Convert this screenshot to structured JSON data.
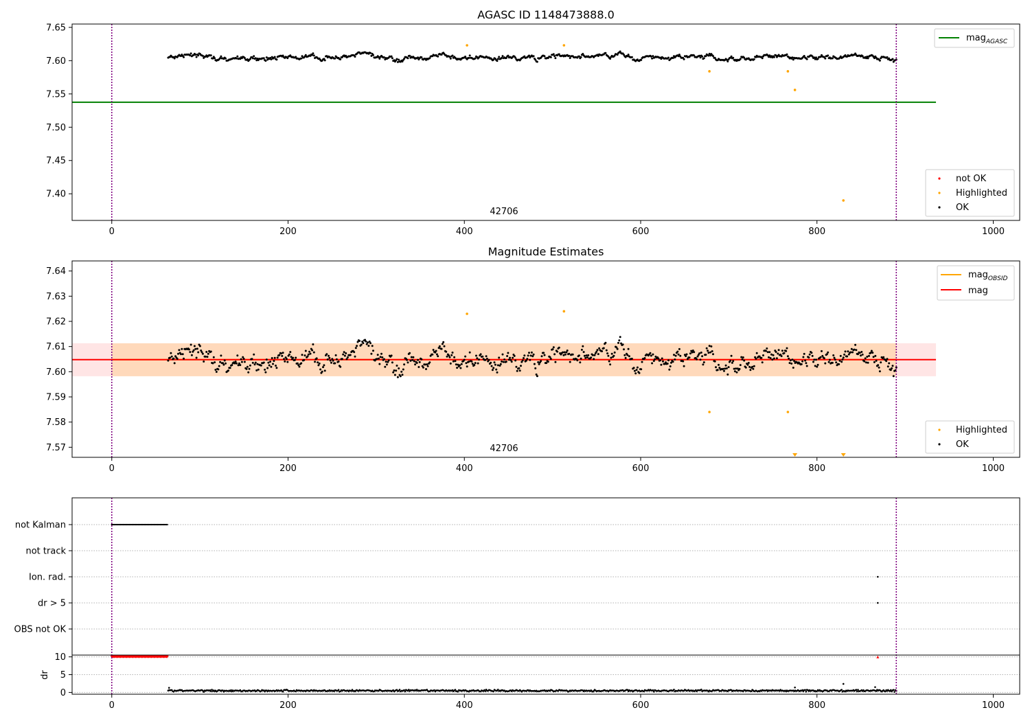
{
  "chart_data": [
    {
      "type": "scatter",
      "title": "AGASC ID 1148473888.0",
      "xlabel": "",
      "ylabel": "",
      "xlim": [
        -45,
        1030
      ],
      "ylim": [
        7.36,
        7.655
      ],
      "x_ticks": [
        "0",
        "200",
        "400",
        "600",
        "800",
        "1000"
      ],
      "y_ticks": [
        "7.40",
        "7.45",
        "7.50",
        "7.55",
        "7.60",
        "7.65"
      ],
      "grid": false,
      "obsid_annotation": "42706",
      "obsid_annotation_x": 445,
      "vertical_markers_x": [
        0,
        890
      ],
      "reference_line": {
        "name": "mag",
        "subscript": "AGASC",
        "y": 7.5375,
        "x_range": [
          -45,
          935
        ],
        "color": "#008000"
      },
      "series": [
        {
          "name": "not OK",
          "color": "#ff0000",
          "points": []
        },
        {
          "name": "Highlighted",
          "color": "#ffa500",
          "points": [
            [
              403,
              7.623
            ],
            [
              513,
              7.623
            ],
            [
              678,
              7.584
            ],
            [
              767,
              7.584
            ],
            [
              775,
              7.556
            ],
            [
              830,
              7.39
            ]
          ]
        },
        {
          "name": "OK",
          "color": "#000000",
          "x_range": [
            64,
            890
          ],
          "level": 7.605,
          "points_note": "dense OK points"
        }
      ],
      "legend_upper": [
        {
          "label": "mag",
          "sub": "AGASC",
          "kind": "line",
          "color": "#008000"
        }
      ],
      "legend_lower": [
        {
          "label": "not OK",
          "kind": "dot",
          "color": "#ff0000"
        },
        {
          "label": "Highlighted",
          "kind": "dot",
          "color": "#ffa500"
        },
        {
          "label": "OK",
          "kind": "dot",
          "color": "#000000"
        }
      ]
    },
    {
      "type": "scatter",
      "title": "Magnitude Estimates",
      "xlabel": "",
      "ylabel": "",
      "xlim": [
        -45,
        1030
      ],
      "ylim": [
        7.566,
        7.644
      ],
      "x_ticks": [
        "0",
        "200",
        "400",
        "600",
        "800",
        "1000"
      ],
      "y_ticks": [
        "7.57",
        "7.58",
        "7.59",
        "7.60",
        "7.61",
        "7.62",
        "7.63",
        "7.64"
      ],
      "grid": false,
      "obsid_annotation": "42706",
      "obsid_annotation_x": 445,
      "vertical_markers_x": [
        0,
        890
      ],
      "mag_obsid": {
        "name": "mag",
        "subscript": "OBSID",
        "y": 7.6048,
        "band": [
          7.5982,
          7.6113
        ],
        "x_range": [
          0,
          890
        ],
        "color": "#ffa500"
      },
      "mag": {
        "name": "mag",
        "y": 7.6048,
        "band": [
          7.5982,
          7.6113
        ],
        "x_range": [
          -45,
          935
        ],
        "color": "#ff0000"
      },
      "series": [
        {
          "name": "Highlighted",
          "color": "#ffa500",
          "points": [
            [
              403,
              7.623
            ],
            [
              513,
              7.624
            ],
            [
              678,
              7.584
            ],
            [
              767,
              7.584
            ]
          ],
          "below_range_markers_x": [
            775,
            830
          ]
        },
        {
          "name": "OK",
          "color": "#000000",
          "x_range": [
            64,
            890
          ],
          "level": 7.605,
          "points_note": "dense OK points"
        }
      ],
      "legend_upper": [
        {
          "label": "mag",
          "sub": "OBSID",
          "kind": "line",
          "color": "#ffa500"
        },
        {
          "label": "mag",
          "sub": "",
          "kind": "line",
          "color": "#ff0000"
        }
      ],
      "legend_lower": [
        {
          "label": "Highlighted",
          "kind": "dot",
          "color": "#ffa500"
        },
        {
          "label": "OK",
          "kind": "dot",
          "color": "#000000"
        }
      ]
    },
    {
      "type": "scatter",
      "title": "",
      "xlim": [
        -45,
        1030
      ],
      "x_ticks": [
        "0",
        "200",
        "400",
        "600",
        "800",
        "1000"
      ],
      "vertical_markers_x": [
        0,
        890
      ],
      "flag_categories": [
        "not Kalman",
        "not track",
        "Ion. rad.",
        "dr > 5",
        "OBS not OK"
      ],
      "flag_points": {
        "not Kalman": {
          "x_range": [
            0,
            63
          ]
        },
        "not track": {
          "x_range": []
        },
        "Ion. rad.": {
          "x": [
            869
          ]
        },
        "dr > 5": {
          "x": [
            869
          ]
        },
        "OBS not OK": {
          "x_range": []
        }
      },
      "dr": {
        "ylabel": "dr",
        "ylim": [
          -0.5,
          10.5
        ],
        "y_ticks": [
          "0",
          "5",
          "10"
        ],
        "clipped_points_x": [
          0,
          63,
          869
        ],
        "clipped_value": 10,
        "clipped_color": "#ff0000",
        "baseline": 0.5,
        "outliers": [
          [
            65,
            1.3
          ],
          [
            775,
            1.4
          ],
          [
            830,
            2.4
          ],
          [
            866,
            1.5
          ]
        ]
      }
    }
  ]
}
